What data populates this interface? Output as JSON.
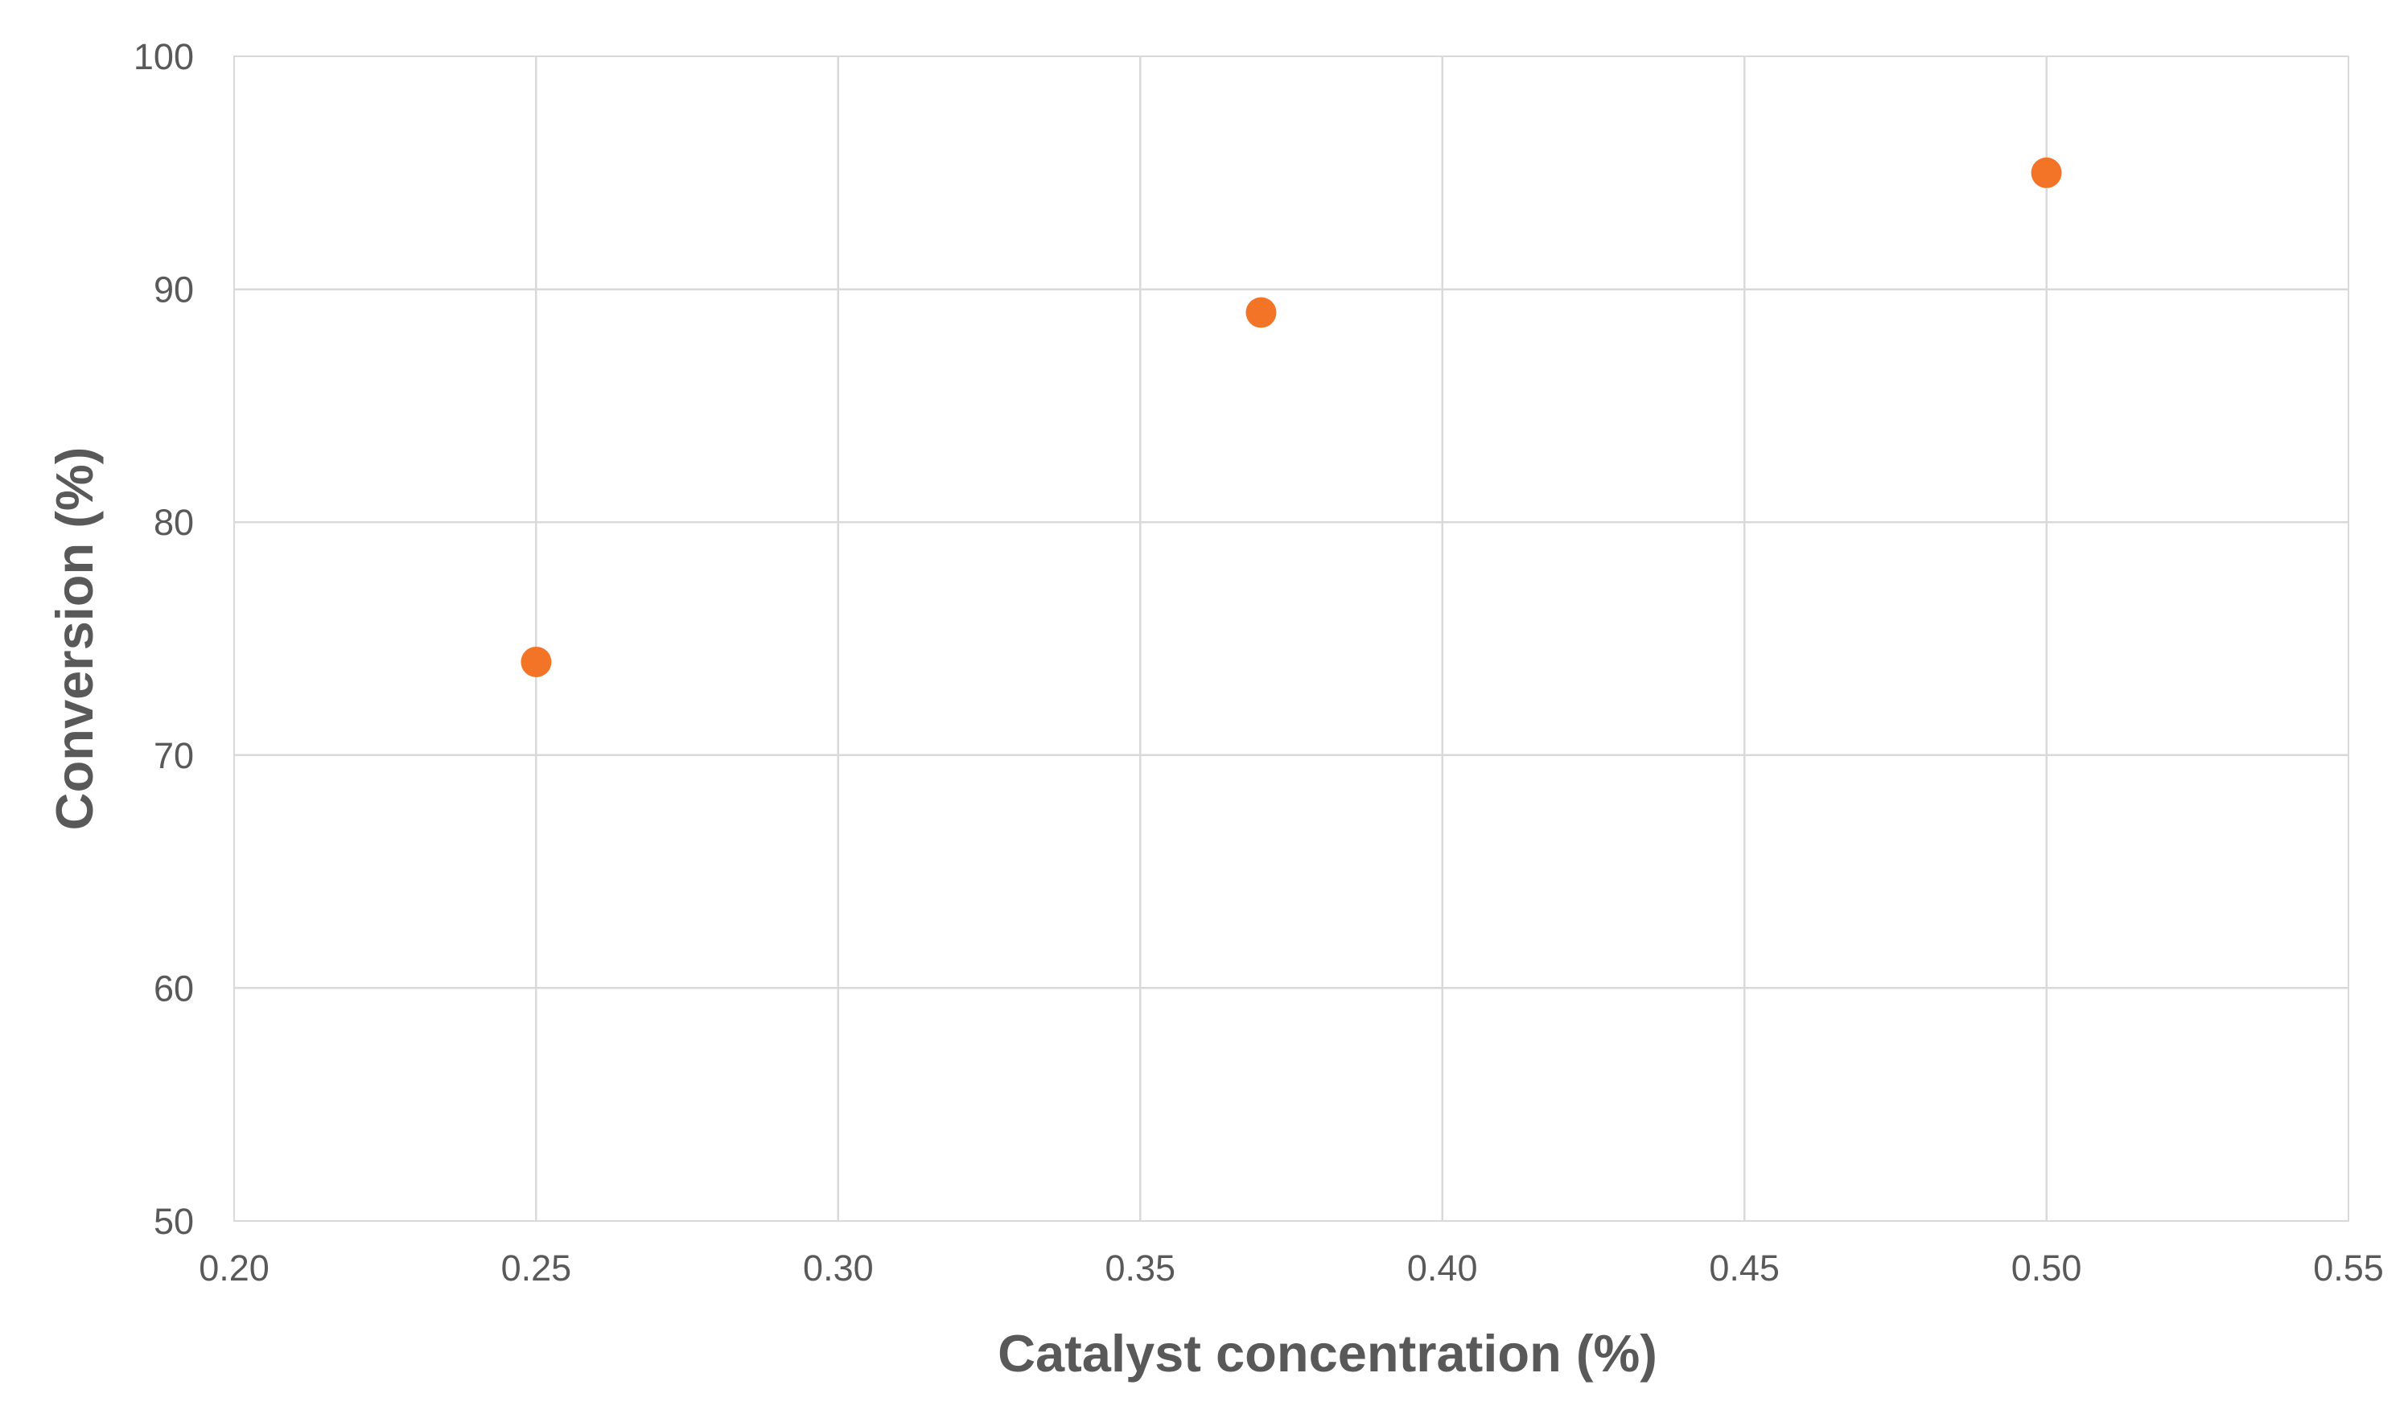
{
  "chart_data": {
    "type": "scatter",
    "title": "",
    "xlabel": "Catalyst concentration (%)",
    "ylabel": "Conversion (%)",
    "xlim": [
      0.2,
      0.55
    ],
    "ylim": [
      50,
      100
    ],
    "x_ticks": [
      "0.20",
      "0.25",
      "0.30",
      "0.35",
      "0.40",
      "0.45",
      "0.50",
      "0.55"
    ],
    "y_ticks": [
      "50",
      "60",
      "70",
      "80",
      "90",
      "100"
    ],
    "grid": true,
    "legend": "none",
    "marker_color": "#f47427",
    "series": [
      {
        "x": [
          0.25,
          0.37,
          0.5
        ],
        "y": [
          74,
          89,
          95
        ]
      }
    ]
  }
}
